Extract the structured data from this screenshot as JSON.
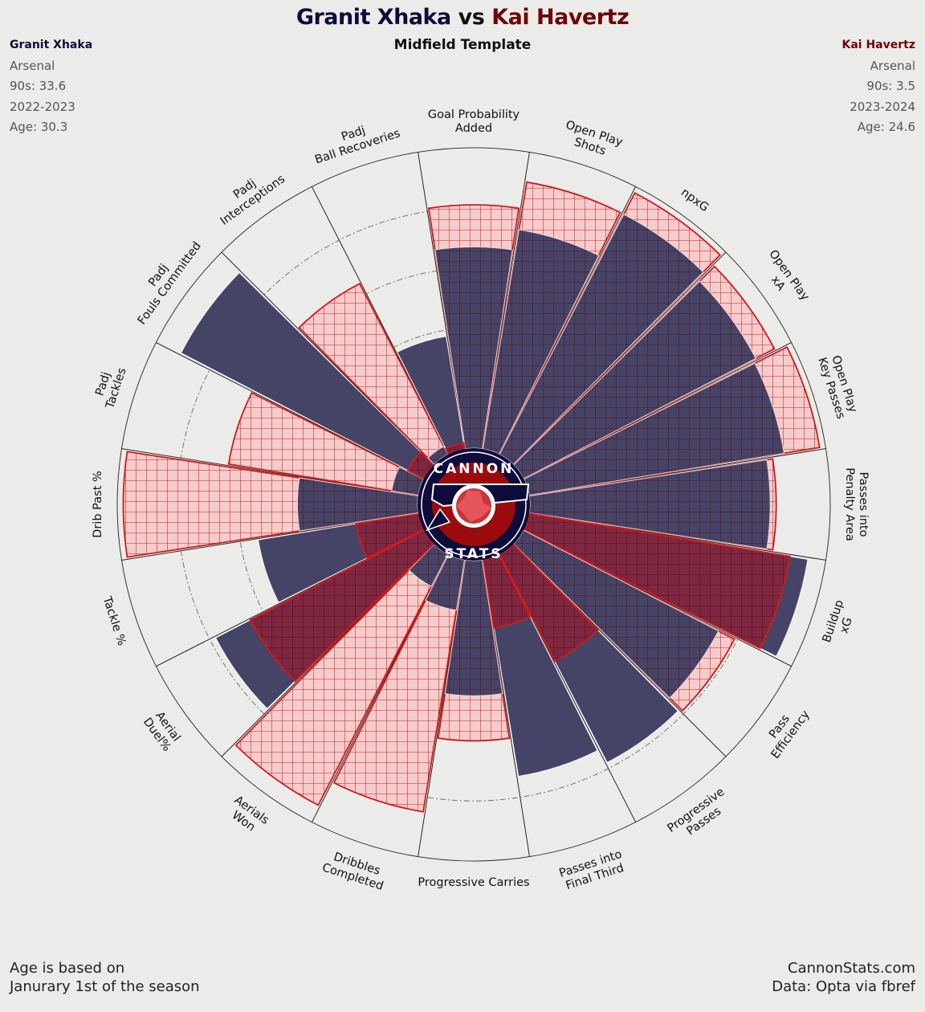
{
  "header": {
    "title_p1": "Granit Xhaka",
    "title_vs": "vs",
    "title_p2": "Kai Havertz",
    "subtitle": "Midfield Template"
  },
  "player1": {
    "name": "Granit Xhaka",
    "club": "Arsenal",
    "nineties": "90s: 33.6",
    "season": "2022-2023",
    "age": "Age: 30.3"
  },
  "player2": {
    "name": "Kai Havertz",
    "club": "Arsenal",
    "nineties": "90s: 3.5",
    "season": "2023-2024",
    "age": "Age: 24.6"
  },
  "footer": {
    "left_line1": "Age is based on",
    "left_line2": "Janurary 1st of the season",
    "right_line1": "CannonStats.com",
    "right_line2": "Data: Opta via fbref"
  },
  "logo": {
    "top_text": "CANNON",
    "bottom_text": "STATS"
  },
  "colors": {
    "p1": "#0d0c3a",
    "p1_fill": "#454466",
    "p2": "#6e0606",
    "p2_edge": "#cc1c1c",
    "p2_fill": "#f4cccc",
    "background": "#ebebea"
  },
  "chart_data": {
    "type": "polar_bar",
    "scale": [
      0,
      100
    ],
    "categories": [
      "Goal Probability\nAdded",
      "Open Play\nShots",
      "npxG",
      "Open Play\nxA",
      "Open Play\nKey Passes",
      "Passes into\nPenalty Area",
      "Buildup\nxG",
      "Pass\nEfficiency",
      "Progressive\nPasses",
      "Passes into\nFinal Third",
      "Progressive Carries",
      "Dribbles\nCompleted",
      "Aerials\nWon",
      "Aerial\nDuel%",
      "Tackle %",
      "Drib Past %",
      "Padj\nTackles",
      "Padj\nFouls Committed",
      "Padj\nInterceptions",
      "Padj\nBall Recoveries"
    ],
    "series": [
      {
        "name": "Granit Xhaka",
        "values": [
          67,
          74,
          90,
          87,
          86,
          80,
          94,
          73,
          78,
          73,
          45,
          17,
          12,
          78,
          54,
          40,
          9,
          91,
          3,
          38
        ]
      },
      {
        "name": "Kai Havertz",
        "values": [
          81,
          90,
          98,
          94,
          98,
          82,
          88,
          79,
          40,
          23,
          60,
          85,
          94,
          65,
          21,
          98,
          64,
          6,
          64,
          2
        ]
      }
    ]
  }
}
